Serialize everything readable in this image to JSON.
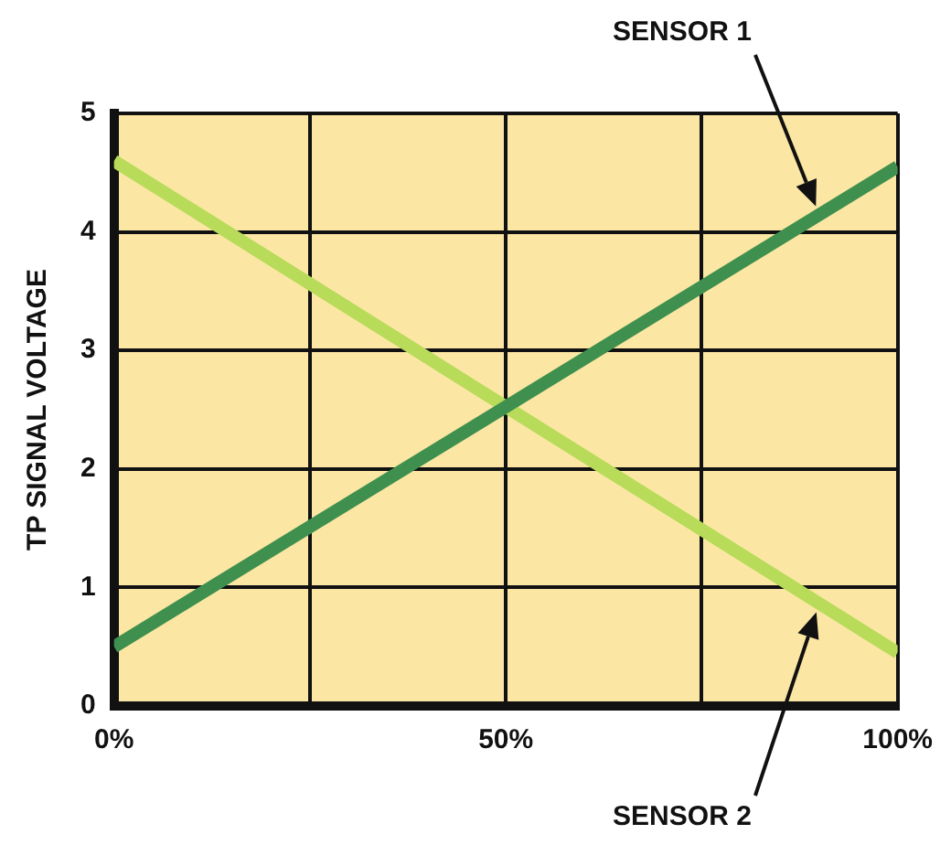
{
  "chart_data": {
    "type": "line",
    "ylabel": "TP SIGNAL VOLTAGE",
    "x": [
      0,
      100
    ],
    "series": [
      {
        "name": "SENSOR 1",
        "color": "#3f8f4f",
        "values": [
          0.5,
          4.55
        ]
      },
      {
        "name": "SENSOR 2",
        "color": "#b8db5a",
        "values": [
          4.6,
          0.45
        ]
      }
    ],
    "xlim": [
      0,
      100
    ],
    "xticks": [
      {
        "value": 0,
        "label": "0%"
      },
      {
        "value": 25,
        "label": null
      },
      {
        "value": 50,
        "label": "50%"
      },
      {
        "value": 75,
        "label": null
      },
      {
        "value": 100,
        "label": "100%"
      }
    ],
    "ylim": [
      0,
      5
    ],
    "yticks": [
      0,
      1,
      2,
      3,
      4,
      5
    ],
    "grid": true,
    "legend": false,
    "marker": "none",
    "line_style": "solid"
  }
}
